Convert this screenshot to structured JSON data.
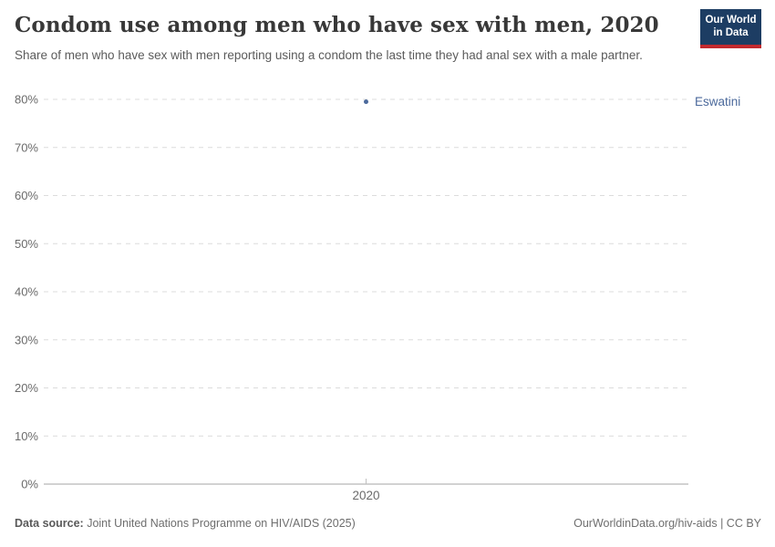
{
  "header": {
    "title": "Condom use among men who have sex with men, 2020",
    "subtitle": "Share of men who have sex with men reporting using a condom the last time they had anal sex with a male partner.",
    "logo": {
      "line1": "Our World",
      "line2": "in Data",
      "bg_color": "#1d3d63",
      "accent_color": "#c2292e"
    }
  },
  "chart_data": {
    "type": "scatter",
    "title": "Condom use among men who have sex with men, 2020",
    "x": [
      2020
    ],
    "series": [
      {
        "name": "Eswatini",
        "values": [
          79.5
        ],
        "color": "#4c6a9c"
      }
    ],
    "xlabel": "",
    "ylabel": "",
    "ylim": [
      0,
      80
    ],
    "yticks": [
      0,
      10,
      20,
      30,
      40,
      50,
      60,
      70,
      80
    ],
    "ytick_suffix": "%",
    "xticks": [
      2020
    ],
    "grid": "horizontal-dashed",
    "grid_color": "#dcdcdc",
    "axis_line_color": "#a5a5a5",
    "tick_label_color": "#6b6b6b",
    "legend_position": "right-of-plot"
  },
  "footer": {
    "source_label": "Data source:",
    "source_text": " Joint United Nations Programme on HIV/AIDS (2025)",
    "credit": "OurWorldinData.org/hiv-aids | CC BY"
  }
}
